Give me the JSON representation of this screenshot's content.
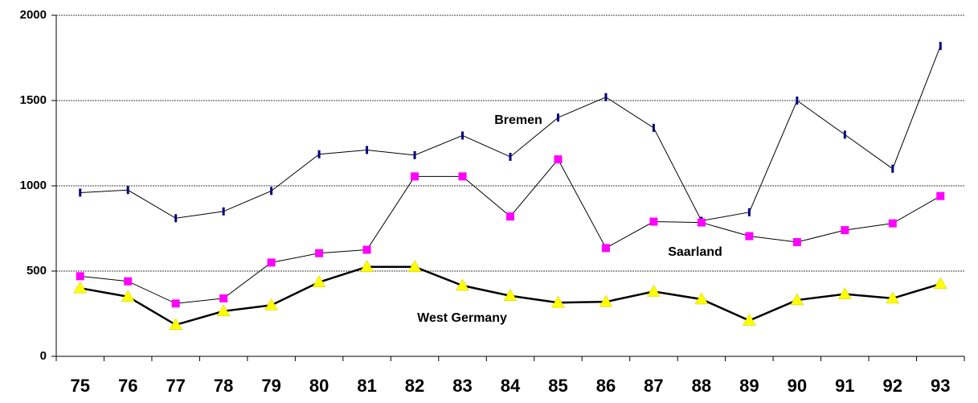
{
  "chart_data": {
    "type": "line",
    "categories": [
      "75",
      "76",
      "77",
      "78",
      "79",
      "80",
      "81",
      "82",
      "83",
      "84",
      "85",
      "86",
      "87",
      "88",
      "89",
      "90",
      "91",
      "92",
      "93"
    ],
    "series": [
      {
        "name": "Bremen",
        "color": "#000080",
        "values": [
          960,
          975,
          810,
          850,
          970,
          1185,
          1210,
          1180,
          1295,
          1170,
          1400,
          1520,
          1340,
          795,
          845,
          1500,
          1300,
          1100,
          1820
        ]
      },
      {
        "name": "Saarland",
        "color": "#ff00ff",
        "values": [
          470,
          440,
          310,
          340,
          550,
          605,
          625,
          1055,
          1055,
          820,
          1155,
          635,
          790,
          785,
          705,
          670,
          740,
          780,
          940
        ]
      },
      {
        "name": "West Germany",
        "color": "#000000",
        "values": [
          400,
          350,
          185,
          265,
          300,
          435,
          525,
          525,
          415,
          355,
          315,
          320,
          380,
          335,
          210,
          330,
          365,
          340,
          425
        ]
      }
    ],
    "ylim": [
      0,
      2000
    ],
    "yticks": [
      0,
      500,
      1000,
      1500,
      2000
    ],
    "grid": true
  }
}
